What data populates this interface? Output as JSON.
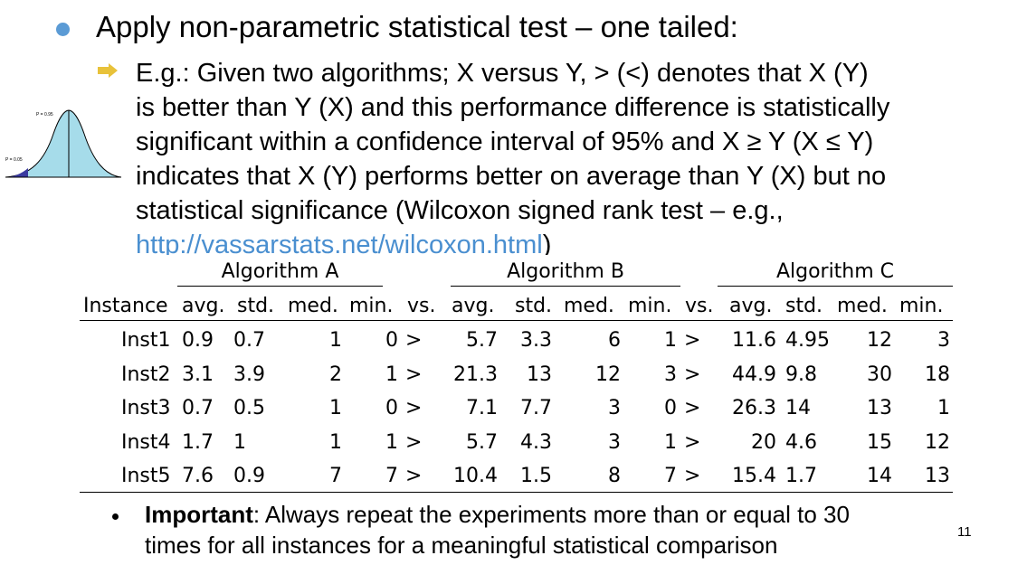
{
  "bullet1": {
    "text": "Apply non-parametric statistical test – one tailed:"
  },
  "bullet2": {
    "lines": [
      "E.g.: Given two algorithms; X versus Y, > (<) denotes that X (Y)",
      "is better than Y (X) and this performance difference is statistically",
      "significant within a confidence interval of 95% and X ≥ Y (X ≤ Y)",
      "indicates that X (Y) performs better on average than Y (X) but no",
      "statistical significance (Wilcoxon signed rank test – e.g.,"
    ],
    "link": "http://vassarstats.net/wilcoxon.html",
    "link_suffix": ")"
  },
  "bell_curve": {
    "label_top": "P = 0.95",
    "label_left": "P = 0.05"
  },
  "table": {
    "groups": [
      "Algorithm A",
      "Algorithm B",
      "Algorithm C"
    ],
    "headers": [
      "Instance",
      "avg.",
      "std.",
      "med.",
      "min.",
      "vs.",
      "avg.",
      "std.",
      "med.",
      "min.",
      "vs.",
      "avg.",
      "std.",
      "med.",
      "min."
    ],
    "rows": [
      [
        "Inst1",
        "0.9",
        "0.7",
        "1",
        "0",
        ">",
        "5.7",
        "3.3",
        "6",
        "1",
        ">",
        "11.6",
        "4.95",
        "12",
        "3"
      ],
      [
        "Inst2",
        "3.1",
        "3.9",
        "2",
        "1",
        ">",
        "21.3",
        "13",
        "12",
        "3",
        ">",
        "44.9",
        "9.8",
        "30",
        "18"
      ],
      [
        "Inst3",
        "0.7",
        "0.5",
        "1",
        "0",
        ">",
        "7.1",
        "7.7",
        "3",
        "0",
        ">",
        "26.3",
        "14",
        "13",
        "1"
      ],
      [
        "Inst4",
        "1.7",
        "1",
        "1",
        "1",
        ">",
        "5.7",
        "4.3",
        "3",
        "1",
        ">",
        "20",
        "4.6",
        "15",
        "12"
      ],
      [
        "Inst5",
        "7.6",
        "0.9",
        "7",
        "7",
        ">",
        "10.4",
        "1.5",
        "8",
        "7",
        ">",
        "15.4",
        "1.7",
        "14",
        "13"
      ]
    ]
  },
  "bullet3": {
    "bold": "Important",
    "line1_rest": ": Always repeat the experiments more than or equal to 30",
    "line2": "times for all instances for a meaningful statistical comparison"
  },
  "page_number": "11",
  "colors": {
    "bullet_blue": "#5b9bd5",
    "arrow_yellow": "#e8c23a",
    "curve_fill": "#a6dcea",
    "tail_fill": "#3a3aa0",
    "link": "#4a8fd0"
  }
}
